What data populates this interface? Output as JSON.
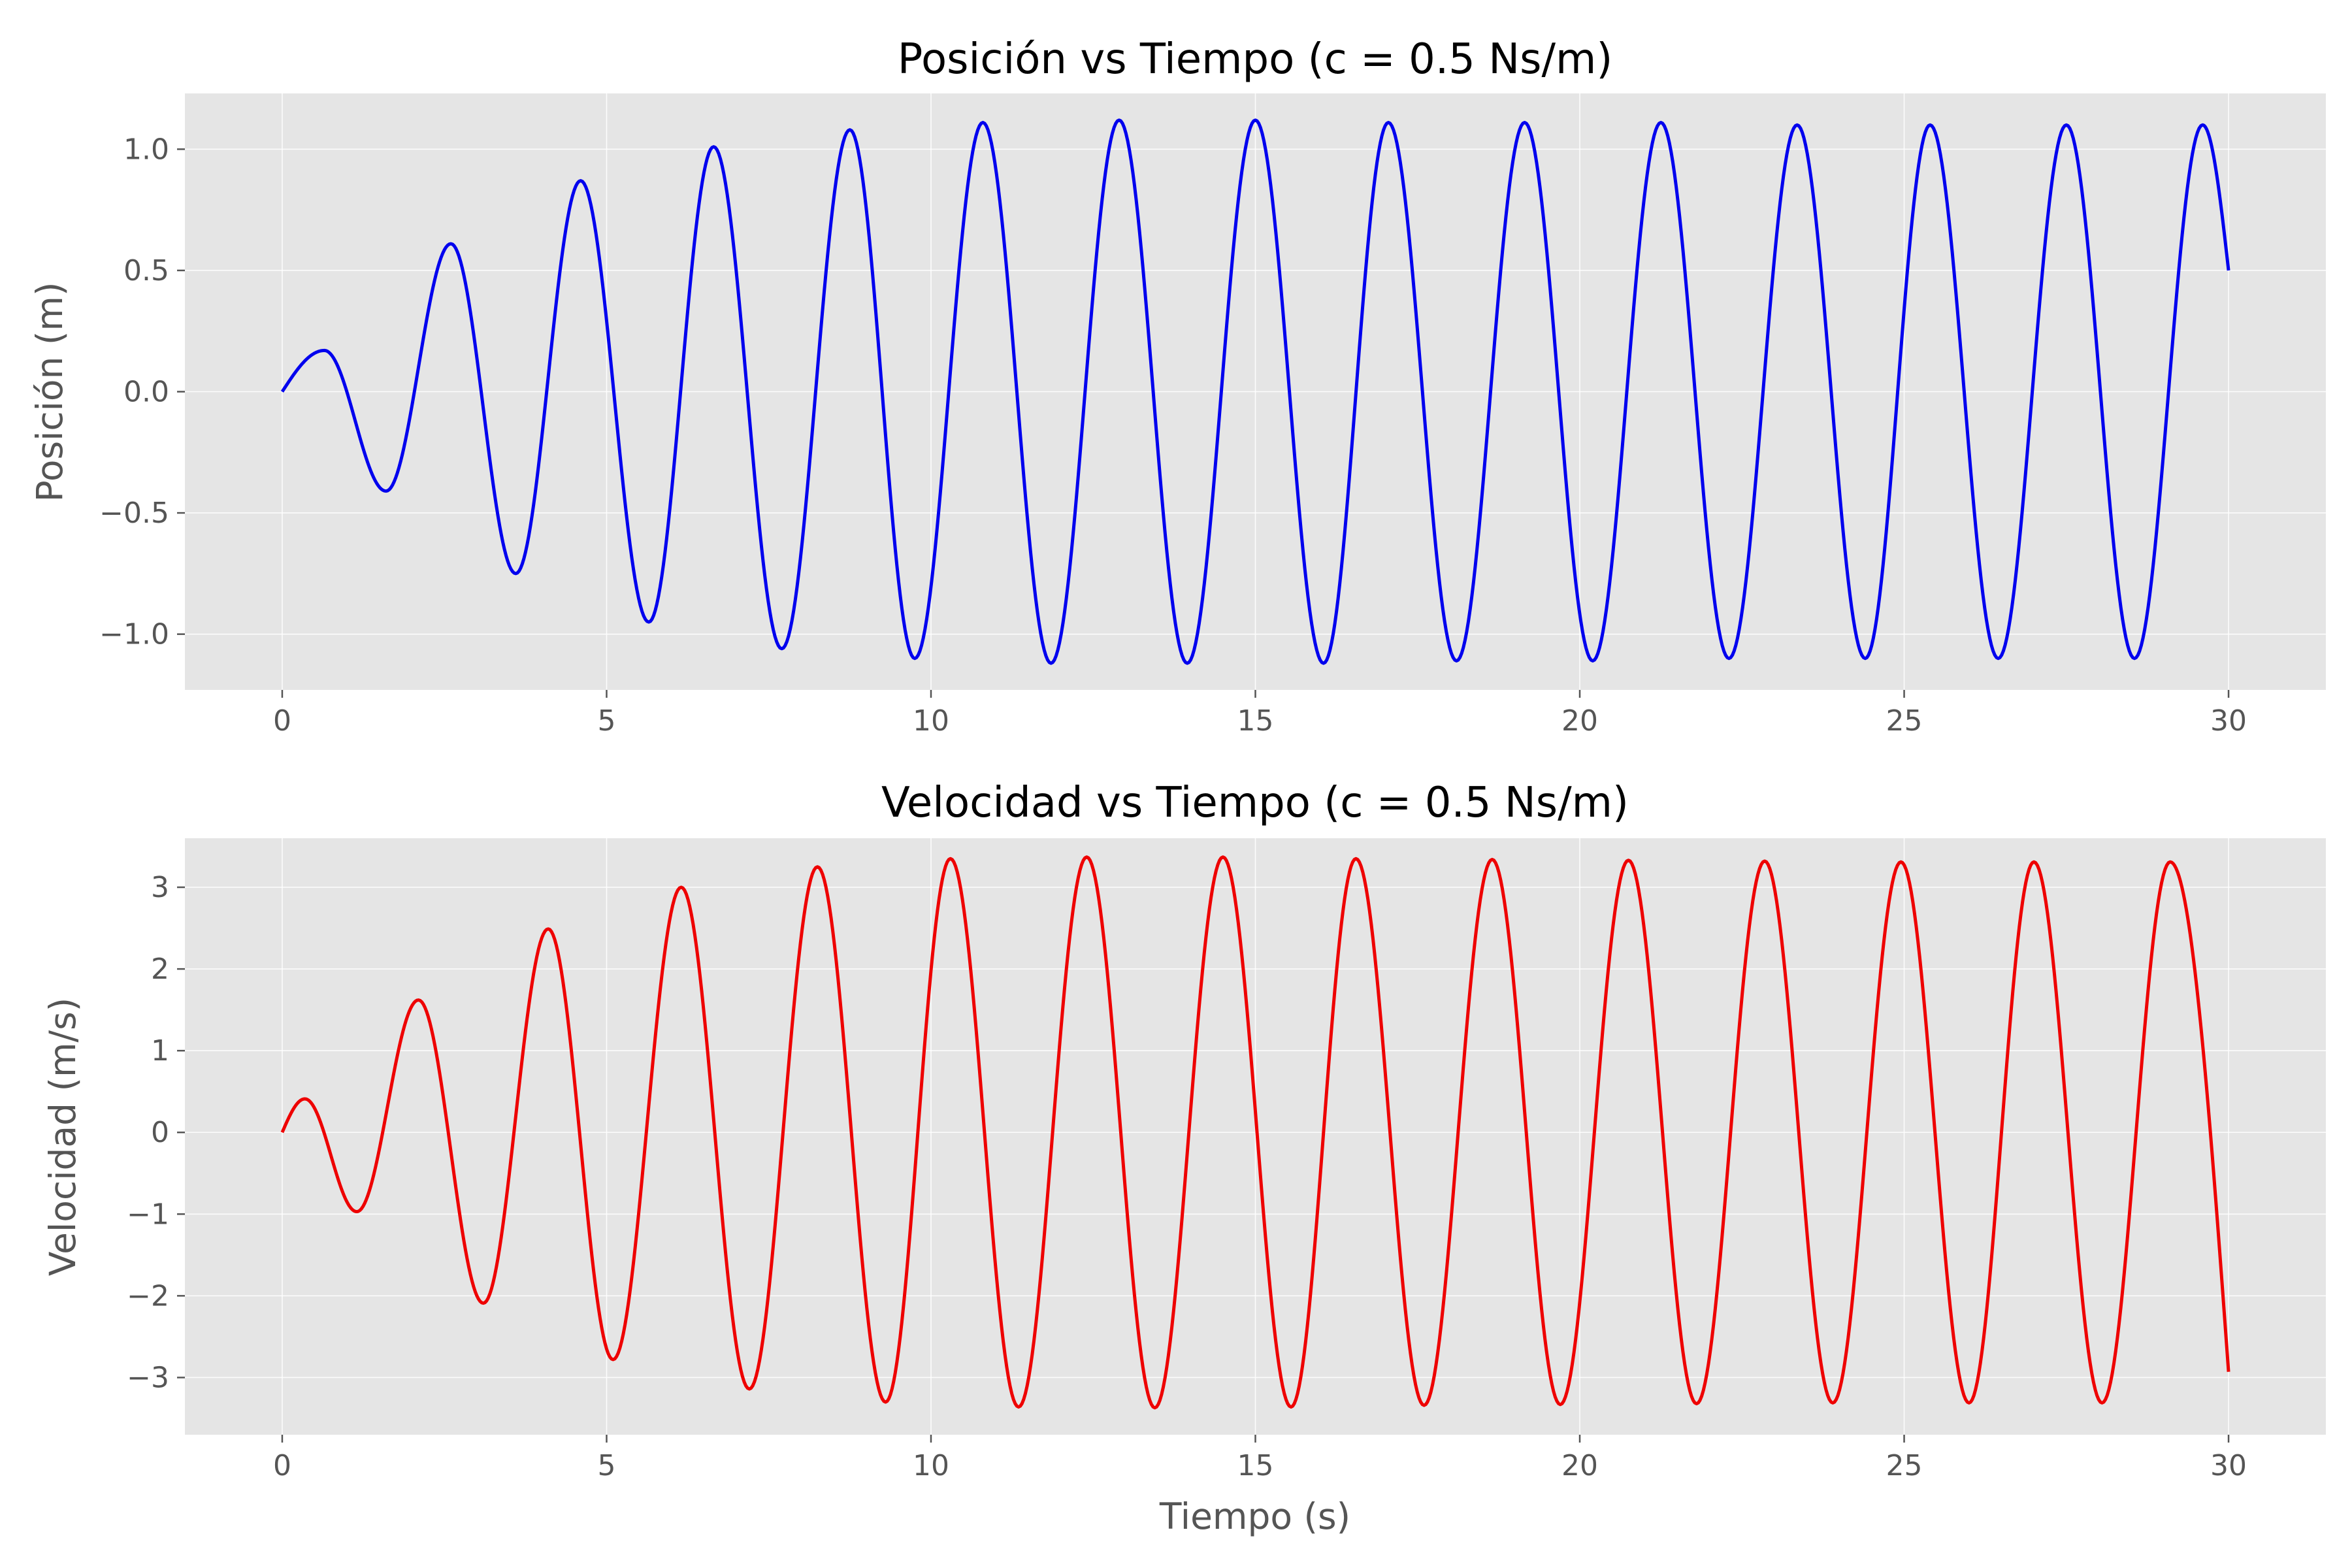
{
  "chart_data": [
    {
      "type": "line",
      "title": "Posición vs Tiempo (c = 0.5 Ns/m)",
      "xlabel": "",
      "ylabel": "Posición (m)",
      "xlim": [
        -1.5,
        31.5
      ],
      "ylim": [
        -1.23,
        1.23
      ],
      "xticks": [
        "0",
        "5",
        "10",
        "15",
        "20",
        "25",
        "30"
      ],
      "yticks": [
        "−1.0",
        "−0.5",
        "0.0",
        "0.5",
        "1.0"
      ],
      "grid": true,
      "series": [
        {
          "color": "#0000ee",
          "x_range": [
            0,
            30
          ],
          "peaks": [
            {
              "t": 0.65,
              "v": 0.17
            },
            {
              "t": 1.6,
              "v": -0.41
            },
            {
              "t": 2.6,
              "v": 0.61
            },
            {
              "t": 3.6,
              "v": -0.75
            },
            {
              "t": 4.6,
              "v": 0.87
            },
            {
              "t": 5.65,
              "v": -0.95
            },
            {
              "t": 6.65,
              "v": 1.01
            },
            {
              "t": 7.7,
              "v": -1.06
            },
            {
              "t": 8.75,
              "v": 1.08
            },
            {
              "t": 9.75,
              "v": -1.1
            },
            {
              "t": 10.8,
              "v": 1.11
            },
            {
              "t": 11.85,
              "v": -1.12
            },
            {
              "t": 12.9,
              "v": 1.12
            },
            {
              "t": 13.95,
              "v": -1.12
            },
            {
              "t": 15.0,
              "v": 1.12
            },
            {
              "t": 16.05,
              "v": -1.12
            },
            {
              "t": 17.05,
              "v": 1.11
            },
            {
              "t": 18.1,
              "v": -1.11
            },
            {
              "t": 19.15,
              "v": 1.11
            },
            {
              "t": 20.2,
              "v": -1.11
            },
            {
              "t": 21.25,
              "v": 1.11
            },
            {
              "t": 22.3,
              "v": -1.1
            },
            {
              "t": 23.35,
              "v": 1.1
            },
            {
              "t": 24.4,
              "v": -1.1
            },
            {
              "t": 25.4,
              "v": 1.1
            },
            {
              "t": 26.45,
              "v": -1.1
            },
            {
              "t": 27.5,
              "v": 1.1
            },
            {
              "t": 28.55,
              "v": -1.1
            },
            {
              "t": 29.6,
              "v": 1.1
            }
          ],
          "start": {
            "t": 0,
            "v": 0.0
          },
          "end": {
            "t": 30,
            "v": 0.5
          }
        }
      ]
    },
    {
      "type": "line",
      "title": "Velocidad vs Tiempo (c = 0.5 Ns/m)",
      "xlabel": "Tiempo (s)",
      "ylabel": "Velocidad (m/s)",
      "xlim": [
        -1.5,
        31.5
      ],
      "ylim": [
        -3.7,
        3.6
      ],
      "xticks": [
        "0",
        "5",
        "10",
        "15",
        "20",
        "25",
        "30"
      ],
      "yticks": [
        "−3",
        "−2",
        "−1",
        "0",
        "1",
        "2",
        "3"
      ],
      "grid": true,
      "series": [
        {
          "color": "#ee0000",
          "x_range": [
            0,
            30
          ],
          "peaks": [
            {
              "t": 0.35,
              "v": 0.41
            },
            {
              "t": 1.15,
              "v": -0.97
            },
            {
              "t": 2.1,
              "v": 1.62
            },
            {
              "t": 3.1,
              "v": -2.09
            },
            {
              "t": 4.1,
              "v": 2.49
            },
            {
              "t": 5.1,
              "v": -2.78
            },
            {
              "t": 6.15,
              "v": 3.0
            },
            {
              "t": 7.2,
              "v": -3.14
            },
            {
              "t": 8.25,
              "v": 3.25
            },
            {
              "t": 9.3,
              "v": -3.3
            },
            {
              "t": 10.3,
              "v": 3.35
            },
            {
              "t": 11.35,
              "v": -3.36
            },
            {
              "t": 12.4,
              "v": 3.37
            },
            {
              "t": 13.45,
              "v": -3.37
            },
            {
              "t": 14.5,
              "v": 3.37
            },
            {
              "t": 15.55,
              "v": -3.36
            },
            {
              "t": 16.55,
              "v": 3.35
            },
            {
              "t": 17.6,
              "v": -3.34
            },
            {
              "t": 18.65,
              "v": 3.34
            },
            {
              "t": 19.7,
              "v": -3.33
            },
            {
              "t": 20.75,
              "v": 3.33
            },
            {
              "t": 21.8,
              "v": -3.32
            },
            {
              "t": 22.85,
              "v": 3.32
            },
            {
              "t": 23.9,
              "v": -3.31
            },
            {
              "t": 24.95,
              "v": 3.31
            },
            {
              "t": 26.0,
              "v": -3.31
            },
            {
              "t": 27.0,
              "v": 3.31
            },
            {
              "t": 28.05,
              "v": -3.31
            },
            {
              "t": 29.1,
              "v": 3.31
            }
          ],
          "start": {
            "t": 0,
            "v": 0.0
          },
          "end": {
            "t": 30,
            "v": -2.93
          }
        }
      ]
    }
  ]
}
